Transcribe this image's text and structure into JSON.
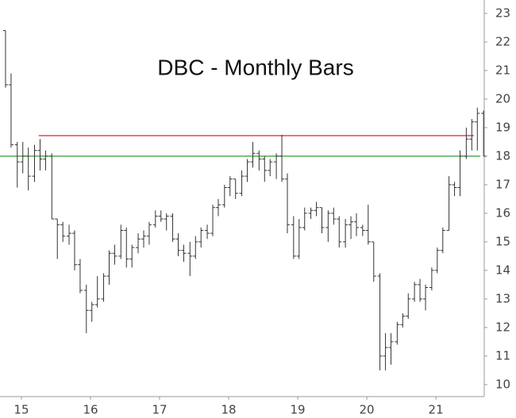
{
  "chart_data": {
    "type": "ohlc",
    "title": "DBC - Monthly Bars",
    "color": "#333333",
    "axis_side": "right",
    "x": [
      14.77,
      14.85,
      14.94,
      15.02,
      15.1,
      15.19,
      15.27,
      15.35,
      15.44,
      15.52,
      15.6,
      15.69,
      15.77,
      15.85,
      15.94,
      16.02,
      16.1,
      16.19,
      16.27,
      16.35,
      16.44,
      16.52,
      16.6,
      16.69,
      16.77,
      16.85,
      16.94,
      17.02,
      17.1,
      17.19,
      17.27,
      17.35,
      17.44,
      17.52,
      17.6,
      17.69,
      17.77,
      17.85,
      17.94,
      18.02,
      18.1,
      18.19,
      18.27,
      18.35,
      18.44,
      18.52,
      18.6,
      18.69,
      18.77,
      18.85,
      18.94,
      19.02,
      19.1,
      19.19,
      19.27,
      19.35,
      19.44,
      19.52,
      19.6,
      19.69,
      19.77,
      19.85,
      19.94,
      20.02,
      20.1,
      20.19,
      20.27,
      20.35,
      20.44,
      20.52,
      20.6,
      20.69,
      20.77,
      20.85,
      20.94,
      21.02,
      21.1,
      21.19,
      21.27,
      21.35,
      21.44,
      21.52,
      21.6,
      21.69
    ],
    "open": [
      22.4,
      20.5,
      18.4,
      17.8,
      18.0,
      17.3,
      18.2,
      17.9,
      18.0,
      15.8,
      15.6,
      15.2,
      15.3,
      14.2,
      13.3,
      12.6,
      12.8,
      13.0,
      13.8,
      14.6,
      14.5,
      15.4,
      14.4,
      14.8,
      15.1,
      15.2,
      15.6,
      15.9,
      15.8,
      15.9,
      15.1,
      14.7,
      14.6,
      14.5,
      15.0,
      15.4,
      15.3,
      16.2,
      16.3,
      16.9,
      17.2,
      16.7,
      17.3,
      17.8,
      18.1,
      17.9,
      17.5,
      17.8,
      18.0,
      17.2,
      15.6,
      14.5,
      15.5,
      16.0,
      16.1,
      16.2,
      15.5,
      16.0,
      15.8,
      15.0,
      15.6,
      15.7,
      15.5,
      15.4,
      15.0,
      13.8,
      11.0,
      11.3,
      11.5,
      12.1,
      12.4,
      13.0,
      13.5,
      13.0,
      13.4,
      14.0,
      14.7,
      15.4,
      17.0,
      16.9,
      18.0,
      18.6,
      19.2,
      19.5
    ],
    "high": [
      22.4,
      20.9,
      18.5,
      18.5,
      18.3,
      18.4,
      18.6,
      18.2,
      18.1,
      15.8,
      15.7,
      15.6,
      15.4,
      14.4,
      13.5,
      12.9,
      13.8,
      13.9,
      14.7,
      14.9,
      15.6,
      15.5,
      14.9,
      15.3,
      15.4,
      15.7,
      16.1,
      16.1,
      16.0,
      16.0,
      15.3,
      14.9,
      15.0,
      15.2,
      15.5,
      15.6,
      16.3,
      16.5,
      17.0,
      17.3,
      17.2,
      17.5,
      17.9,
      18.5,
      18.2,
      18.0,
      17.9,
      18.1,
      18.75,
      17.4,
      15.9,
      15.8,
      16.2,
      16.2,
      16.4,
      16.2,
      16.1,
      16.2,
      15.9,
      15.8,
      15.9,
      16.0,
      15.6,
      16.3,
      15.0,
      13.9,
      11.8,
      11.8,
      12.2,
      12.5,
      13.2,
      13.6,
      13.7,
      13.5,
      14.1,
      14.8,
      15.5,
      17.3,
      17.1,
      18.2,
      19.0,
      19.3,
      19.7,
      19.6
    ],
    "low": [
      20.4,
      18.3,
      16.9,
      17.4,
      16.8,
      17.1,
      17.5,
      17.5,
      15.8,
      14.4,
      15.0,
      14.9,
      14.0,
      13.2,
      11.8,
      12.2,
      12.7,
      12.9,
      13.5,
      14.2,
      14.4,
      14.1,
      14.1,
      14.6,
      14.8,
      14.9,
      15.5,
      15.7,
      15.4,
      15.0,
      14.5,
      14.3,
      13.8,
      14.4,
      14.8,
      15.1,
      15.2,
      15.9,
      16.2,
      16.6,
      16.5,
      16.6,
      17.1,
      17.6,
      17.5,
      17.1,
      17.3,
      17.2,
      17.1,
      15.3,
      14.4,
      14.4,
      15.4,
      15.8,
      15.9,
      15.3,
      15.0,
      15.6,
      14.8,
      14.8,
      15.1,
      15.2,
      15.2,
      14.9,
      13.6,
      10.5,
      10.5,
      10.7,
      11.4,
      12.0,
      12.3,
      12.9,
      12.9,
      12.6,
      13.3,
      13.9,
      14.6,
      15.4,
      16.6,
      16.6,
      17.9,
      18.2,
      18.2,
      18.0
    ],
    "close": [
      20.5,
      18.4,
      17.8,
      18.0,
      17.3,
      18.2,
      17.9,
      18.0,
      15.8,
      15.6,
      15.2,
      15.3,
      14.2,
      13.3,
      12.6,
      12.8,
      13.0,
      13.8,
      14.6,
      14.5,
      15.4,
      14.4,
      14.8,
      15.1,
      15.2,
      15.6,
      15.9,
      15.8,
      15.9,
      15.1,
      14.7,
      14.6,
      14.5,
      15.0,
      15.4,
      15.3,
      16.2,
      16.3,
      16.9,
      17.2,
      16.7,
      17.3,
      17.8,
      18.1,
      17.9,
      17.5,
      17.8,
      18.0,
      17.2,
      15.6,
      14.5,
      15.5,
      16.0,
      16.1,
      16.2,
      15.5,
      16.0,
      15.8,
      15.0,
      15.6,
      15.7,
      15.5,
      15.4,
      15.0,
      13.8,
      11.0,
      11.3,
      11.5,
      12.1,
      12.4,
      13.0,
      13.5,
      13.0,
      13.4,
      14.0,
      14.7,
      15.4,
      17.0,
      16.9,
      18.0,
      18.6,
      19.2,
      19.5,
      18.0
    ],
    "xlim": [
      14.69,
      21.7
    ],
    "xticks": [
      15,
      16,
      17,
      18,
      19,
      20,
      21
    ],
    "ylim": [
      9.58,
      23.47
    ],
    "yticks": [
      10,
      11,
      12,
      13,
      14,
      15,
      16,
      17,
      18,
      19,
      20,
      21,
      22,
      23
    ],
    "reference_lines": [
      {
        "value": 18.72,
        "color": "#e0202a",
        "x_start": 15.25,
        "x_end": 21.55
      },
      {
        "value": 18.0,
        "color": "#2ca02c"
      }
    ]
  }
}
